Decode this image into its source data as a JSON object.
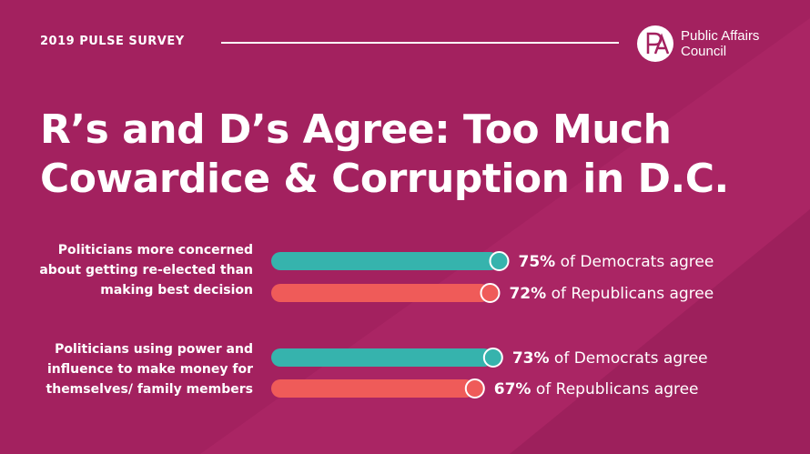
{
  "header": {
    "kicker": "2019 PULSE SURVEY",
    "logo_line1": "Public Affairs",
    "logo_line2": "Council",
    "logo_monogram": "PA"
  },
  "title_line1": "R’s and D’s Agree: Too Much",
  "title_line2": "Cowardice & Corruption in D.C.",
  "colors": {
    "background": "#a3215f",
    "democrats": "#36b3ad",
    "republicans": "#ef5b59",
    "text": "#ffffff"
  },
  "chart_data": {
    "type": "bar",
    "orientation": "horizontal",
    "categories": [
      "Politicians more concerned about getting re-elected than making best decision",
      "Politicians using power and influence to make money for themselves/ family members"
    ],
    "series": [
      {
        "name": "Democrats",
        "values": [
          75,
          73
        ],
        "labels": [
          {
            "pct": "75%",
            "text": "of Democrats agree"
          },
          {
            "pct": "73%",
            "text": "of Democrats agree"
          }
        ]
      },
      {
        "name": "Republicans",
        "values": [
          72,
          67
        ],
        "labels": [
          {
            "pct": "72%",
            "text": "of Republicans agree"
          },
          {
            "pct": "67%",
            "text": "of Republicans agree"
          }
        ]
      }
    ],
    "unit": "%",
    "xlim": [
      0,
      100
    ],
    "grid": false,
    "legend": "none"
  }
}
